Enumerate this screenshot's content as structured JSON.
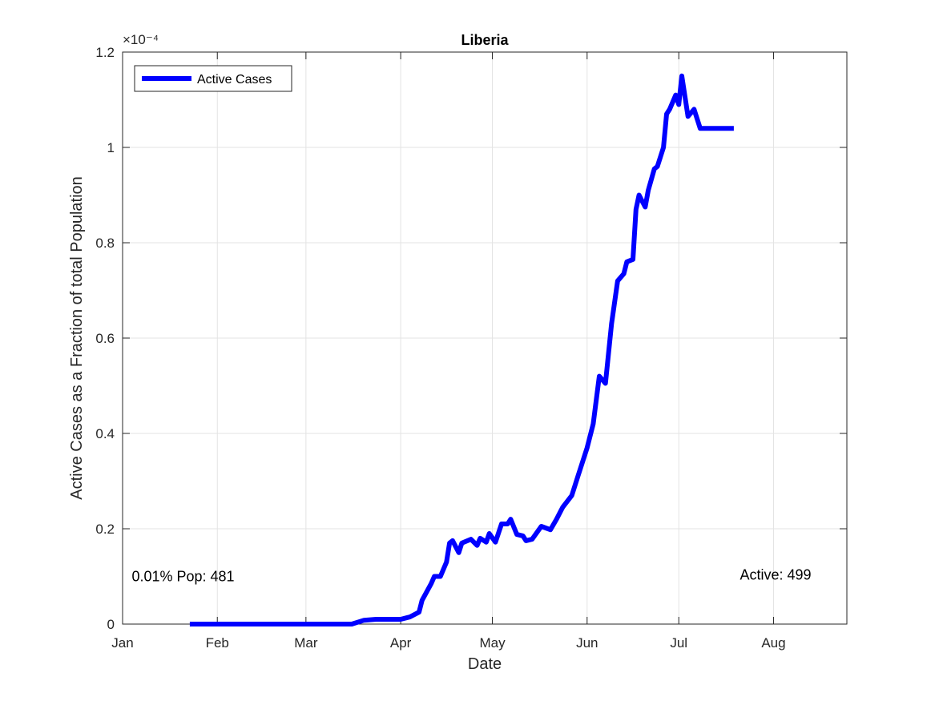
{
  "chart_data": {
    "type": "line",
    "title": "Liberia",
    "xlabel": "Date",
    "ylabel": "Active Cases as a Fraction of total Population",
    "y_exponent_label": "×10⁻⁴",
    "y_scale": 0.0001,
    "x_ticks": [
      "Jan",
      "Feb",
      "Mar",
      "Apr",
      "May",
      "Jun",
      "Jul",
      "Aug"
    ],
    "x_tick_dates": [
      "2020-01-01",
      "2020-02-01",
      "2020-03-01",
      "2020-04-01",
      "2020-05-01",
      "2020-06-01",
      "2020-07-01",
      "2020-08-01"
    ],
    "xlim": [
      "2020-01-01",
      "2020-08-25"
    ],
    "y_ticks": [
      "0",
      "0.2",
      "0.4",
      "0.6",
      "0.8",
      "1",
      "1.2"
    ],
    "ylim": [
      0,
      0.00012
    ],
    "grid": true,
    "legend_position": "top-left",
    "series": [
      {
        "name": "Active Cases",
        "color": "#0000FF",
        "x": [
          "2020-01-23",
          "2020-02-15",
          "2020-03-16",
          "2020-03-20",
          "2020-03-24",
          "2020-03-28",
          "2020-04-01",
          "2020-04-04",
          "2020-04-07",
          "2020-04-08",
          "2020-04-11",
          "2020-04-12",
          "2020-04-14",
          "2020-04-16",
          "2020-04-17",
          "2020-04-18",
          "2020-04-20",
          "2020-04-21",
          "2020-04-24",
          "2020-04-26",
          "2020-04-27",
          "2020-04-29",
          "2020-04-30",
          "2020-05-02",
          "2020-05-04",
          "2020-05-06",
          "2020-05-07",
          "2020-05-09",
          "2020-05-11",
          "2020-05-12",
          "2020-05-14",
          "2020-05-17",
          "2020-05-20",
          "2020-05-22",
          "2020-05-24",
          "2020-05-27",
          "2020-05-29",
          "2020-06-01",
          "2020-06-03",
          "2020-06-05",
          "2020-06-07",
          "2020-06-09",
          "2020-06-11",
          "2020-06-13",
          "2020-06-14",
          "2020-06-16",
          "2020-06-17",
          "2020-06-18",
          "2020-06-20",
          "2020-06-21",
          "2020-06-23",
          "2020-06-24",
          "2020-06-26",
          "2020-06-27",
          "2020-06-28",
          "2020-06-30",
          "2020-07-01",
          "2020-07-02",
          "2020-07-04",
          "2020-07-06",
          "2020-07-08",
          "2020-07-10",
          "2020-07-12",
          "2020-07-14",
          "2020-07-15",
          "2020-07-16",
          "2020-07-17",
          "2020-07-18",
          "2020-07-19"
        ],
        "values": [
          0,
          0,
          0,
          8e-07,
          1e-06,
          1e-06,
          1e-06,
          1.5e-06,
          2.5e-06,
          5e-06,
          8.5e-06,
          1e-05,
          1e-05,
          1.3e-05,
          1.7e-05,
          1.75e-05,
          1.5e-05,
          1.7e-05,
          1.78e-05,
          1.65e-05,
          1.8e-05,
          1.72e-05,
          1.9e-05,
          1.72e-05,
          2.1e-05,
          2.1e-05,
          2.2e-05,
          1.88e-05,
          1.85e-05,
          1.75e-05,
          1.78e-05,
          2.05e-05,
          1.98e-05,
          2.2e-05,
          2.45e-05,
          2.7e-05,
          3.1e-05,
          3.7e-05,
          4.2e-05,
          5.2e-05,
          5.05e-05,
          6.3e-05,
          7.2e-05,
          7.35e-05,
          7.6e-05,
          7.65e-05,
          8.7e-05,
          9e-05,
          8.75e-05,
          9.1e-05,
          9.55e-05,
          9.6e-05,
          0.0001,
          0.000107,
          0.000108,
          0.000111,
          0.000109,
          0.000115,
          0.0001065,
          0.000108,
          0.000104,
          0.000104,
          0.000104,
          0.000104,
          0.000104,
          0.000104,
          0.000104,
          0.000104,
          0.000104
        ]
      }
    ],
    "annotations": [
      {
        "text": "0.01% Pop: 481",
        "x": "2020-01-04",
        "y": 1e-05
      },
      {
        "text": "Active: 499",
        "x": "2020-07-21",
        "y": 1.03e-05
      }
    ]
  }
}
